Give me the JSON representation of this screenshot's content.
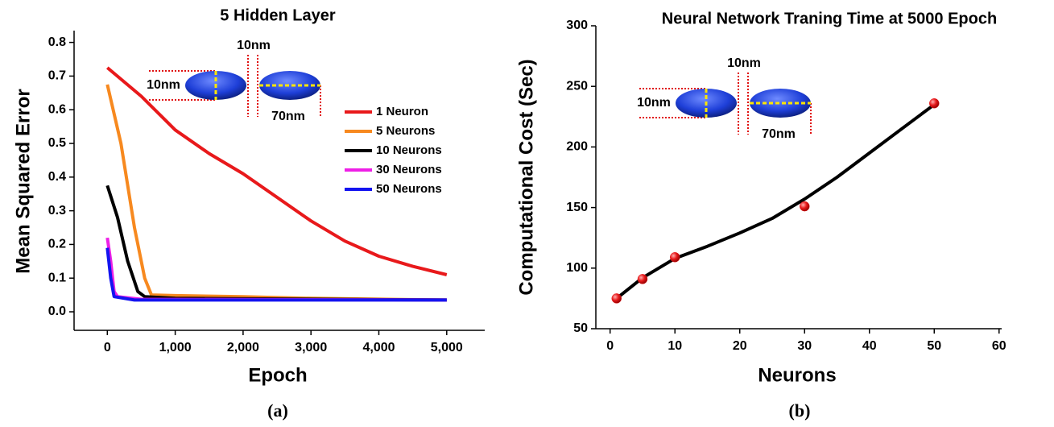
{
  "chart_data": [
    {
      "type": "line",
      "title": "5 Hidden Layer",
      "x_label": "Epoch",
      "y_label": "Mean Squared Error",
      "caption": "(a)",
      "xlim": [
        -490,
        5560
      ],
      "ylim": [
        -0.055,
        0.835
      ],
      "xticks": [
        0,
        {
          "value": 1000,
          "label": "1,000"
        },
        {
          "value": 2000,
          "label": "2,000"
        },
        {
          "value": 3000,
          "label": "3,000"
        },
        {
          "value": 4000,
          "label": "4,000"
        },
        {
          "value": 5000,
          "label": "5,000"
        }
      ],
      "yticks": [
        {
          "value": 0,
          "label": "0.0"
        },
        0.1,
        0.2,
        0.3,
        0.4,
        0.5,
        0.6,
        0.7,
        0.8
      ],
      "legend": "upper right",
      "inset": {
        "left_label": "10nm",
        "top_label": "10nm",
        "bottom_label": "70nm"
      },
      "series": [
        {
          "name": "1 Neuron",
          "color": "#e8191b",
          "x": [
            0,
            500,
            1000,
            1500,
            2000,
            2500,
            3000,
            3500,
            4000,
            4500,
            5000
          ],
          "values": [
            0.725,
            0.64,
            0.54,
            0.47,
            0.41,
            0.34,
            0.27,
            0.21,
            0.165,
            0.135,
            0.11
          ]
        },
        {
          "name": "5 Neurons",
          "color": "#f7891f",
          "x": [
            0,
            200,
            400,
            550,
            650,
            1000,
            2000,
            3000,
            5000
          ],
          "values": [
            0.675,
            0.5,
            0.25,
            0.1,
            0.05,
            0.048,
            0.045,
            0.04,
            0.035
          ]
        },
        {
          "name": "10 Neurons",
          "color": "#000000",
          "x": [
            0,
            150,
            300,
            450,
            550,
            1000,
            5000
          ],
          "values": [
            0.375,
            0.28,
            0.15,
            0.06,
            0.045,
            0.04,
            0.035
          ]
        },
        {
          "name": "30 Neurons",
          "color": "#ee1fe6",
          "x": [
            0,
            50,
            100,
            150,
            500,
            5000
          ],
          "values": [
            0.22,
            0.15,
            0.06,
            0.045,
            0.037,
            0.035
          ]
        },
        {
          "name": "50 Neurons",
          "color": "#1414f0",
          "x": [
            0,
            50,
            100,
            400,
            5000
          ],
          "values": [
            0.19,
            0.1,
            0.045,
            0.035,
            0.035
          ]
        }
      ]
    },
    {
      "type": "scatter",
      "title": "Neural Network Traning Time at 5000 Epoch",
      "x_label": "Neurons",
      "y_label": "Computational Cost (Sec)",
      "caption": "(b)",
      "xlim": [
        -2.2,
        60.4
      ],
      "ylim": [
        50,
        300
      ],
      "xticks": [
        0,
        10,
        20,
        30,
        40,
        50,
        60
      ],
      "yticks": [
        50,
        100,
        150,
        200,
        250,
        300
      ],
      "inset": {
        "left_label": "10nm",
        "top_label": "10nm",
        "bottom_label": "70nm"
      },
      "x": [
        1,
        5,
        10,
        30,
        50
      ],
      "values": [
        75,
        91,
        109,
        151,
        236
      ],
      "color": "#e8191b",
      "fit_curve": {
        "color": "#000000",
        "x": [
          1,
          5,
          10,
          15,
          20,
          25,
          30,
          35,
          40,
          45,
          50
        ],
        "values": [
          75,
          92,
          108,
          118,
          129,
          141,
          157,
          175,
          195,
          215,
          235
        ]
      }
    }
  ]
}
